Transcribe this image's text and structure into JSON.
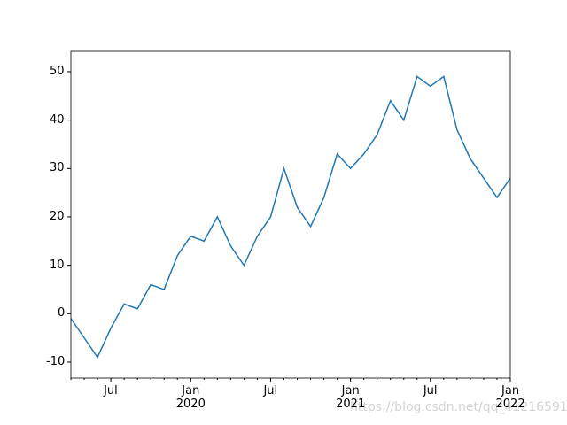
{
  "chart_data": {
    "type": "line",
    "x": [
      "2019-04",
      "2019-05",
      "2019-06",
      "2019-07",
      "2019-08",
      "2019-09",
      "2019-10",
      "2019-11",
      "2019-12",
      "2020-01",
      "2020-02",
      "2020-03",
      "2020-04",
      "2020-05",
      "2020-06",
      "2020-07",
      "2020-08",
      "2020-09",
      "2020-10",
      "2020-11",
      "2020-12",
      "2021-01",
      "2021-02",
      "2021-03",
      "2021-04",
      "2021-05",
      "2021-06",
      "2021-07",
      "2021-08",
      "2021-09",
      "2021-10",
      "2021-11",
      "2021-12",
      "2022-01"
    ],
    "series": [
      {
        "color": "#1f77b4",
        "values": [
          -1,
          -5,
          -9,
          -3,
          2,
          1,
          6,
          5,
          12,
          16,
          15,
          20,
          14,
          10,
          16,
          20,
          30,
          22,
          18,
          24,
          33,
          30,
          33,
          37,
          44,
          40,
          49,
          47,
          49,
          38,
          32,
          28,
          24,
          28
        ]
      }
    ],
    "xlim": [
      "2019-04",
      "2022-01"
    ],
    "xticks": [
      "Jul",
      {
        "value": "2020-01",
        "label": "Jan\n2020"
      },
      "Jul",
      {
        "value": "2021-01",
        "label": "Jan\n2021"
      },
      "Jul",
      {
        "value": "2022-01",
        "label": "Jan\n2022"
      }
    ],
    "xtick_values": [
      "2019-07",
      "2020-01",
      "2020-07",
      "2021-01",
      "2021-07",
      "2022-01"
    ],
    "ylim": [
      -13.3,
      54.2
    ],
    "yticks": [
      -10,
      0,
      10,
      20,
      30,
      40,
      50
    ],
    "watermark": "https://blog.csdn.net/qq_41216591"
  }
}
